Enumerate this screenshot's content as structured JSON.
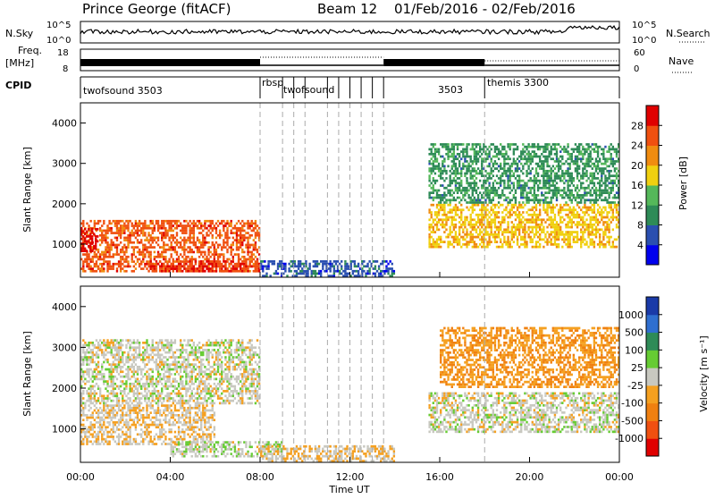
{
  "header": {
    "radar": "Prince George (fitACF)",
    "beam": "Beam 12",
    "date_range": "01/Feb/2016 - 02/Feb/2016"
  },
  "nsky_panel": {
    "left_label": "N.Sky",
    "left_ticks": [
      "10^5",
      "10^0"
    ],
    "right_label": "N.Search",
    "right_ticks": [
      "10^5",
      "10^0"
    ]
  },
  "freq_panel": {
    "left_label_1": "Freq.",
    "left_label_2": "[MHz]",
    "left_ticks": [
      "18",
      "8"
    ],
    "right_label": "Nave",
    "right_ticks": [
      "60",
      "0"
    ]
  },
  "cpid_panel": {
    "label": "CPID",
    "programs": [
      {
        "name": "twofsound 3503"
      },
      {
        "name": "rbsp"
      },
      {
        "name": "twofsound"
      },
      {
        "name": "3503"
      },
      {
        "name": "themis 3300"
      }
    ]
  },
  "x_axis": {
    "label": "Time UT",
    "ticks": [
      "00:00",
      "04:00",
      "08:00",
      "12:00",
      "16:00",
      "20:00",
      "00:00"
    ]
  },
  "power_panel": {
    "ylabel": "Slant Range [km]",
    "yticks": [
      "1000",
      "2000",
      "3000",
      "4000"
    ],
    "colorbar_label": "Power [dB]",
    "colorbar_ticks": [
      "4",
      "8",
      "12",
      "16",
      "20",
      "24",
      "28"
    ],
    "colors": [
      "#0000ee",
      "#2a4fb0",
      "#2e8b57",
      "#55b85a",
      "#f0d010",
      "#f08c10",
      "#f05010",
      "#e00000"
    ]
  },
  "velocity_panel": {
    "ylabel": "Slant Range [km]",
    "yticks": [
      "1000",
      "2000",
      "3000",
      "4000"
    ],
    "colorbar_label": "Velocity [m s⁻¹]",
    "colorbar_ticks": [
      "1000",
      "500",
      "100",
      "25",
      "-25",
      "-100",
      "-500",
      "-1000"
    ],
    "colors": [
      "#1a3aa8",
      "#2f6fd0",
      "#2e8b57",
      "#66cc33",
      "#c8c8c0",
      "#f5a020",
      "#f08010",
      "#f05010",
      "#e00000"
    ]
  },
  "chart_data": [
    {
      "type": "heatmap",
      "title": "Power [dB]",
      "xlabel": "Time UT",
      "ylabel": "Slant Range [km]",
      "xlim": [
        "00:00",
        "24:00"
      ],
      "ylim": [
        180,
        4500
      ],
      "color_range": [
        0,
        30
      ],
      "regions": [
        {
          "t_start": 0.0,
          "t_end": 8.0,
          "range_start": 300,
          "range_end": 1600,
          "power": 24
        },
        {
          "t_start": 0.0,
          "t_end": 0.8,
          "range_start": 800,
          "range_end": 1400,
          "power": 30
        },
        {
          "t_start": 3.0,
          "t_end": 8.0,
          "range_start": 300,
          "range_end": 600,
          "power": 26
        },
        {
          "t_start": 8.0,
          "t_end": 14.0,
          "range_start": 180,
          "range_end": 600,
          "power": 6
        },
        {
          "t_start": 15.5,
          "t_end": 24.0,
          "range_start": 900,
          "range_end": 2000,
          "power": 18
        },
        {
          "t_start": 15.5,
          "t_end": 24.0,
          "range_start": 2000,
          "range_end": 3500,
          "power": 10
        }
      ]
    },
    {
      "type": "heatmap",
      "title": "Velocity [m s⁻¹]",
      "xlabel": "Time UT",
      "ylabel": "Slant Range [km]",
      "xlim": [
        "00:00",
        "24:00"
      ],
      "ylim": [
        180,
        4500
      ],
      "color_range": [
        -1000,
        1000
      ],
      "regions": [
        {
          "t_start": 0.0,
          "t_end": 6.0,
          "range_start": 600,
          "range_end": 1600,
          "velocity": -100
        },
        {
          "t_start": 0.0,
          "t_end": 8.0,
          "range_start": 1600,
          "range_end": 3200,
          "velocity": 0
        },
        {
          "t_start": 4.0,
          "t_end": 9.0,
          "range_start": 300,
          "range_end": 700,
          "velocity": 50
        },
        {
          "t_start": 8.0,
          "t_end": 14.0,
          "range_start": 180,
          "range_end": 600,
          "velocity": -100
        },
        {
          "t_start": 15.5,
          "t_end": 24.0,
          "range_start": 900,
          "range_end": 1900,
          "velocity": 0
        },
        {
          "t_start": 16.0,
          "t_end": 24.0,
          "range_start": 2000,
          "range_end": 3500,
          "velocity": -300
        }
      ]
    }
  ]
}
